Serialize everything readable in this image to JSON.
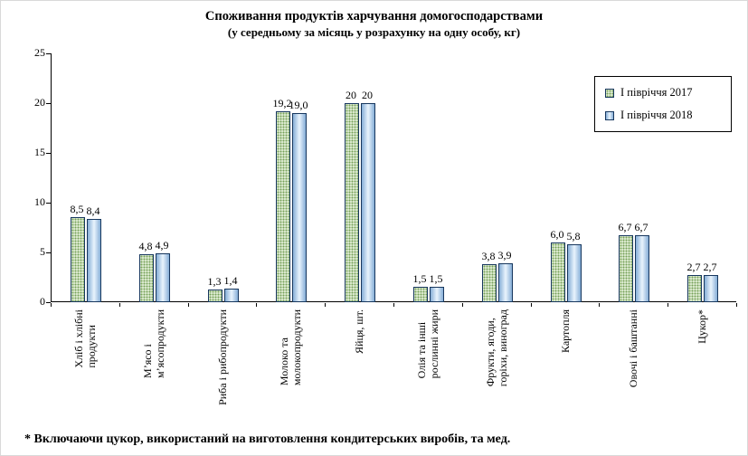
{
  "title": "Споживання продуктів харчування домогосподарствами",
  "subtitle": "(у середньому за місяць у розрахунку на одну особу, кг)",
  "footnote": "* Включаючи цукор, використаний на виготовлення кондитерських виробів, та мед.",
  "chart_data": {
    "type": "bar",
    "title": "Споживання продуктів харчування домогосподарствами",
    "subtitle": "(у середньому за місяць у розрахунку на одну особу, кг)",
    "categories": [
      "Хліб і хлібні\nпродукти",
      "М’ясо і\nм’ясопродукти",
      "Риба і рибопродукти",
      "Молоко та\nмолокопродукти",
      "Яйця, шт.",
      "Олія та інші\nрослинні жири",
      "Фрукти, ягоди,\nгоріхи, виноград",
      "Картопля",
      "Овочі і баштанні",
      "Цукор*"
    ],
    "series": [
      {
        "name": "І півріччя 2017",
        "values": [
          8.5,
          4.8,
          1.3,
          19.2,
          20,
          1.5,
          3.8,
          6.0,
          6.7,
          2.7
        ],
        "labels": [
          "8,5",
          "4,8",
          "1,3",
          "19,2",
          "20",
          "1,5",
          "3,8",
          "6,0",
          "6,7",
          "2,7"
        ]
      },
      {
        "name": "І півріччя 2018",
        "values": [
          8.4,
          4.9,
          1.4,
          19.0,
          20,
          1.5,
          3.9,
          5.8,
          6.7,
          2.7
        ],
        "labels": [
          "8,4",
          "4,9",
          "1,4",
          "19,0",
          "20",
          "1,5",
          "3,9",
          "5,8",
          "6,7",
          "2,7"
        ]
      }
    ],
    "ylim": [
      0,
      25
    ],
    "yticks": [
      0,
      5,
      10,
      15,
      20,
      25
    ],
    "xlabel": "",
    "ylabel": "",
    "grid": false,
    "legend_position": "top-right",
    "colors": {
      "series_2017_fill": "#e3efd7",
      "series_2017_dots": "#76a058",
      "series_2018_fill_edge": "#86aed7",
      "series_2018_fill_center": "#e9f4fd",
      "bar_border": "#17375e",
      "axis": "#000000"
    }
  }
}
